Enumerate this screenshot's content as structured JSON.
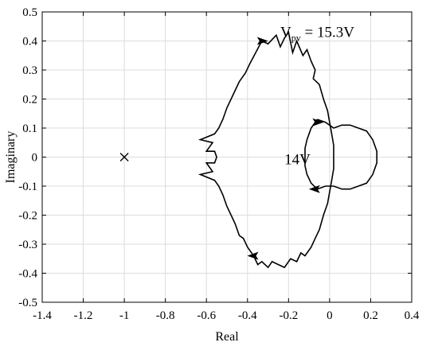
{
  "chart_data": {
    "type": "line",
    "title": "",
    "xlabel": "Real",
    "ylabel": "Imaginary",
    "xlim": [
      -1.4,
      0.4
    ],
    "ylim": [
      -0.5,
      0.5
    ],
    "xticks": [
      -1.4,
      -1.2,
      -1,
      -0.8,
      -0.6,
      -0.4,
      -0.2,
      0,
      0.2,
      0.4
    ],
    "xtick_labels": [
      "-1.4",
      "-1.2",
      "-1",
      "-0.8",
      "-0.6",
      "-0.4",
      "-0.2",
      "0",
      "0.2",
      "0.4"
    ],
    "yticks": [
      0.5,
      0.4,
      0.3,
      0.2,
      0.1,
      0,
      -0.1,
      -0.2,
      -0.3,
      -0.4,
      -0.5
    ],
    "ytick_labels": [
      "0.5",
      "0.4",
      "0.3",
      "0.2",
      "0.1",
      "0",
      "-0.1",
      "-0.2",
      "-0.3",
      "-0.4",
      "-0.5"
    ],
    "grid": true,
    "critical_point": {
      "x": -1,
      "y": 0,
      "marker": "x"
    },
    "annotations": [
      {
        "main": "V",
        "sub": "pv",
        "rest": " = 15.3V",
        "x": -0.24,
        "y": 0.43
      },
      {
        "main": "14V",
        "x": -0.22,
        "y": -0.005
      }
    ],
    "series": [
      {
        "points": [
          [
            -0.36,
            0.36
          ],
          [
            -0.33,
            0.4
          ],
          [
            -0.3,
            0.39
          ],
          [
            -0.26,
            0.42
          ],
          [
            -0.24,
            0.38
          ],
          [
            -0.22,
            0.41
          ],
          [
            -0.2,
            0.43
          ],
          [
            -0.18,
            0.36
          ],
          [
            -0.16,
            0.4
          ],
          [
            -0.13,
            0.35
          ],
          [
            -0.11,
            0.37
          ],
          [
            -0.09,
            0.33
          ],
          [
            -0.07,
            0.3
          ],
          [
            -0.08,
            0.27
          ],
          [
            -0.05,
            0.25
          ],
          [
            -0.03,
            0.2
          ],
          [
            -0.01,
            0.16
          ],
          [
            0.0,
            0.12
          ],
          [
            0.01,
            0.08
          ],
          [
            0.02,
            0.04
          ],
          [
            0.02,
            0.0
          ],
          [
            0.02,
            -0.04
          ],
          [
            0.01,
            -0.08
          ],
          [
            0.0,
            -0.12
          ],
          [
            -0.01,
            -0.16
          ],
          [
            -0.03,
            -0.2
          ],
          [
            -0.05,
            -0.25
          ],
          [
            -0.07,
            -0.28
          ],
          [
            -0.09,
            -0.31
          ],
          [
            -0.12,
            -0.34
          ],
          [
            -0.14,
            -0.33
          ],
          [
            -0.16,
            -0.36
          ],
          [
            -0.19,
            -0.35
          ],
          [
            -0.22,
            -0.38
          ],
          [
            -0.25,
            -0.37
          ],
          [
            -0.28,
            -0.36
          ],
          [
            -0.3,
            -0.38
          ],
          [
            -0.33,
            -0.36
          ],
          [
            -0.35,
            -0.37
          ],
          [
            -0.37,
            -0.34
          ],
          [
            -0.4,
            -0.31
          ],
          [
            -0.42,
            -0.28
          ],
          [
            -0.44,
            -0.27
          ],
          [
            -0.46,
            -0.23
          ],
          [
            -0.48,
            -0.2
          ],
          [
            -0.5,
            -0.17
          ],
          [
            -0.52,
            -0.13
          ],
          [
            -0.54,
            -0.1
          ],
          [
            -0.56,
            -0.08
          ],
          [
            -0.63,
            -0.06
          ],
          [
            -0.57,
            -0.05
          ],
          [
            -0.6,
            -0.02
          ],
          [
            -0.56,
            -0.02
          ],
          [
            -0.55,
            0.0
          ],
          [
            -0.56,
            0.02
          ],
          [
            -0.6,
            0.02
          ],
          [
            -0.57,
            0.05
          ],
          [
            -0.63,
            0.06
          ],
          [
            -0.56,
            0.08
          ],
          [
            -0.54,
            0.1
          ],
          [
            -0.52,
            0.13
          ],
          [
            -0.5,
            0.17
          ],
          [
            -0.48,
            0.2
          ],
          [
            -0.46,
            0.23
          ],
          [
            -0.44,
            0.26
          ],
          [
            -0.41,
            0.29
          ],
          [
            -0.39,
            0.32
          ],
          [
            -0.36,
            0.36
          ]
        ]
      },
      {
        "points": [
          [
            -0.06,
            0.13
          ],
          [
            -0.02,
            0.12
          ],
          [
            0.02,
            0.1
          ],
          [
            0.06,
            0.11
          ],
          [
            0.1,
            0.11
          ],
          [
            0.14,
            0.1
          ],
          [
            0.18,
            0.09
          ],
          [
            0.21,
            0.06
          ],
          [
            0.23,
            0.02
          ],
          [
            0.23,
            -0.02
          ],
          [
            0.21,
            -0.06
          ],
          [
            0.18,
            -0.09
          ],
          [
            0.14,
            -0.1
          ],
          [
            0.1,
            -0.11
          ],
          [
            0.06,
            -0.11
          ],
          [
            0.02,
            -0.1
          ],
          [
            -0.02,
            -0.1
          ],
          [
            -0.06,
            -0.11
          ],
          [
            -0.09,
            -0.09
          ],
          [
            -0.11,
            -0.06
          ],
          [
            -0.12,
            -0.03
          ],
          [
            -0.12,
            0.0
          ],
          [
            -0.12,
            0.03
          ],
          [
            -0.11,
            0.06
          ],
          [
            -0.09,
            0.1
          ],
          [
            -0.06,
            0.13
          ]
        ]
      }
    ]
  }
}
